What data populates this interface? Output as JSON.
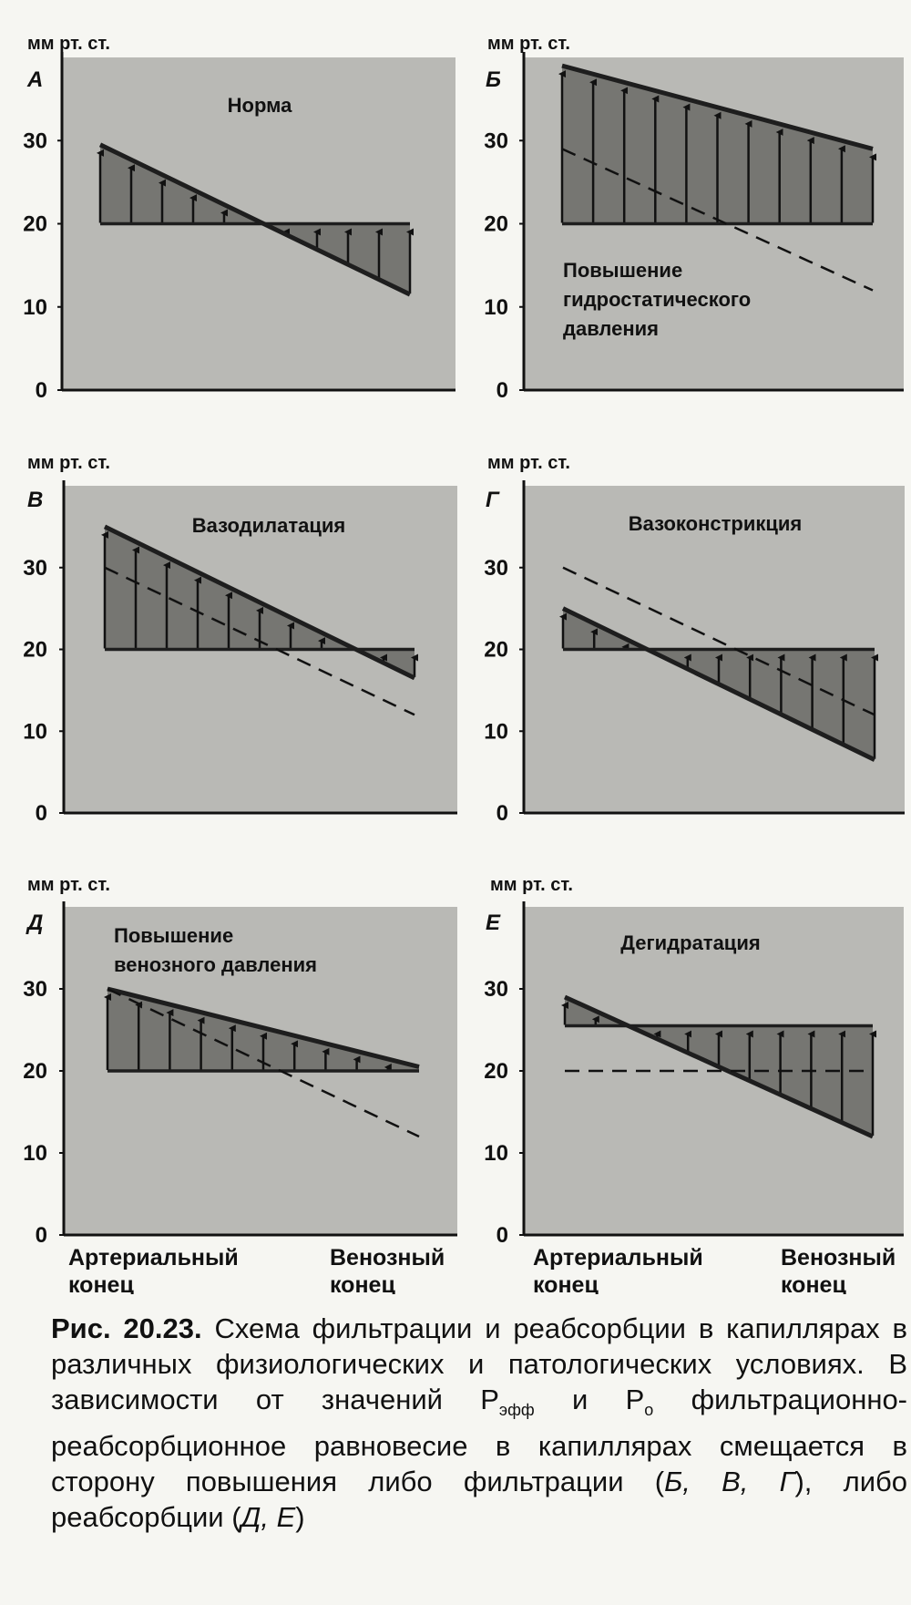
{
  "figure": {
    "unit_label": "мм рт. ст.",
    "x_labels": {
      "left": [
        "Артериальный",
        "конец"
      ],
      "right": [
        "Венозный",
        "конец"
      ]
    }
  },
  "caption": {
    "label": "Рис. 20.23.",
    "text_1": " Схема фильтрации и реабсорбции в капиллярах в различных физиологических и патологических условиях. В зависимости от значений P",
    "sub_1": "эфф",
    "text_2": " и P",
    "sub_2": "о",
    "text_3": " фильтрационно-реабсорбционное равновесие в капиллярах смещается в сторону повышения либо фильтрации (",
    "ital_1": "Б, В, Г",
    "text_4": "), либо реабсорбции (",
    "ital_2": "Д, Е",
    "text_5": ")"
  },
  "colors": {
    "panel_bg": "#b9b9b5",
    "region_fill": "#767672",
    "line": "#1e1e1e"
  },
  "chart_data": [
    {
      "type": "line",
      "panel": "А",
      "title": "Норма",
      "ylabel": "мм рт. ст.",
      "ylim": [
        0,
        40
      ],
      "yticks": [
        0,
        10,
        20,
        30
      ],
      "series": [
        {
          "role": "hydrostatic",
          "x": [
            0,
            1
          ],
          "y": [
            29.5,
            11.5
          ]
        },
        {
          "role": "oncotic",
          "x": [
            0,
            1
          ],
          "y": [
            20,
            20
          ]
        }
      ],
      "reference_dashed": null
    },
    {
      "type": "line",
      "panel": "Б",
      "title": "Повышение гидростатического давления",
      "ylabel": "мм рт. ст.",
      "ylim": [
        0,
        40
      ],
      "yticks": [
        0,
        10,
        20,
        30
      ],
      "series": [
        {
          "role": "hydrostatic",
          "x": [
            0,
            1
          ],
          "y": [
            39,
            29
          ]
        },
        {
          "role": "oncotic",
          "x": [
            0,
            1
          ],
          "y": [
            20,
            20
          ]
        }
      ],
      "reference_dashed": {
        "x": [
          0,
          1
        ],
        "y": [
          29,
          12
        ]
      }
    },
    {
      "type": "line",
      "panel": "В",
      "title": "Вазодилатация",
      "ylabel": "мм рт. ст.",
      "ylim": [
        0,
        40
      ],
      "yticks": [
        0,
        10,
        20,
        30
      ],
      "series": [
        {
          "role": "hydrostatic",
          "x": [
            0,
            1
          ],
          "y": [
            35,
            16.5
          ]
        },
        {
          "role": "oncotic",
          "x": [
            0,
            1
          ],
          "y": [
            20,
            20
          ]
        }
      ],
      "reference_dashed": {
        "x": [
          0,
          1
        ],
        "y": [
          30,
          12
        ]
      }
    },
    {
      "type": "line",
      "panel": "Г",
      "title": "Вазоконстрикция",
      "ylabel": "мм рт. ст.",
      "ylim": [
        0,
        40
      ],
      "yticks": [
        0,
        10,
        20,
        30
      ],
      "series": [
        {
          "role": "hydrostatic",
          "x": [
            0,
            1
          ],
          "y": [
            25,
            6.5
          ]
        },
        {
          "role": "oncotic",
          "x": [
            0,
            1
          ],
          "y": [
            20,
            20
          ]
        }
      ],
      "reference_dashed": {
        "x": [
          0,
          1
        ],
        "y": [
          30,
          12
        ]
      }
    },
    {
      "type": "line",
      "panel": "Д",
      "title": "Повышение венозного давления",
      "ylabel": "мм рт. ст.",
      "ylim": [
        0,
        40
      ],
      "yticks": [
        0,
        10,
        20,
        30
      ],
      "series": [
        {
          "role": "hydrostatic",
          "x": [
            0,
            1
          ],
          "y": [
            30,
            20.5
          ]
        },
        {
          "role": "oncotic",
          "x": [
            0,
            1
          ],
          "y": [
            20,
            20
          ]
        }
      ],
      "reference_dashed": {
        "x": [
          0,
          1
        ],
        "y": [
          30,
          12
        ]
      }
    },
    {
      "type": "line",
      "panel": "Е",
      "title": "Дегидратация",
      "ylabel": "мм рт. ст.",
      "ylim": [
        0,
        40
      ],
      "yticks": [
        0,
        10,
        20,
        30
      ],
      "series": [
        {
          "role": "hydrostatic",
          "x": [
            0,
            1
          ],
          "y": [
            29,
            12
          ]
        },
        {
          "role": "oncotic",
          "x": [
            0,
            1
          ],
          "y": [
            25.5,
            25.5
          ]
        }
      ],
      "reference_dashed": {
        "x": [
          0,
          1
        ],
        "y": [
          20,
          20
        ]
      }
    }
  ]
}
